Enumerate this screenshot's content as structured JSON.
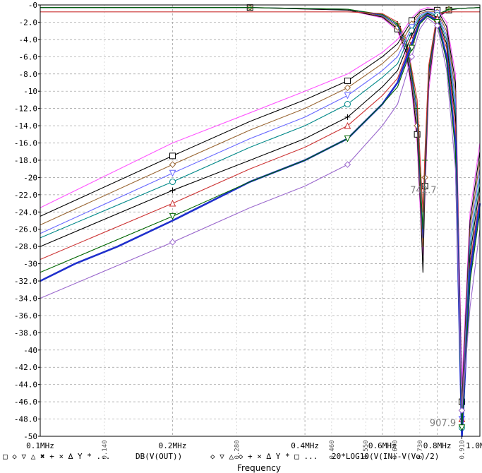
{
  "chart_data": {
    "type": "line",
    "title": "",
    "xlabel": "Frequency",
    "ylabel": "",
    "xscale": "log",
    "xlim": [
      0.1,
      1.0
    ],
    "ylim": [
      -50,
      0
    ],
    "grid": true,
    "x_tick_labels": [
      "0.1MHz",
      "0.2MHz",
      "0.4MHz",
      "0.6MHz",
      "0.8MHz",
      "1.0MHz"
    ],
    "x_tick_values": [
      0.1,
      0.2,
      0.4,
      0.6,
      0.8,
      1.0
    ],
    "x_minor_tick_labels": [
      "0.140",
      "0.280",
      "0.460",
      "0.550",
      "0.640",
      "0.730",
      "0.910"
    ],
    "x_minor_tick_values": [
      0.14,
      0.28,
      0.46,
      0.55,
      0.64,
      0.73,
      0.91
    ],
    "y_tick_labels": [
      "-0",
      "-2.0",
      "-4.0",
      "-6.0",
      "-8.0",
      "-10",
      "-12.0",
      "-14.0",
      "-16.0",
      "-18.0",
      "-20",
      "-22.0",
      "-24.0",
      "-26.0",
      "-28.0",
      "-30",
      "-32.0",
      "-34.0",
      "-36.0",
      "-38.0",
      "-40",
      "-42.0",
      "-44.0",
      "-46.0",
      "-48.0",
      "-50"
    ],
    "y_tick_values": [
      0,
      -2,
      -4,
      -6,
      -8,
      -10,
      -12,
      -14,
      -16,
      -18,
      -20,
      -22,
      -24,
      -26,
      -28,
      -30,
      -32,
      -34,
      -36,
      -38,
      -40,
      -42,
      -44,
      -46,
      -48,
      -50
    ],
    "legend_groups": [
      {
        "markers": "□ ◇ ▽ △ ✖ + × ∆ Y * ...",
        "label": "DB(V(OUT))"
      },
      {
        "markers": "◇ ▽ △ ◇ + × ∆ Y * □ ...",
        "label": "20*LOG10(V(IN)-V(Vo)/2)"
      }
    ],
    "annotations": [
      "742.7",
      "907.9"
    ],
    "out_series": [
      {
        "color": "#ff55ff",
        "marker": "none",
        "x": [
          0.1,
          0.2,
          0.3,
          0.4,
          0.5,
          0.6,
          0.65,
          0.7,
          0.73,
          0.76,
          0.8,
          0.84,
          0.88,
          0.91,
          0.95,
          1.0
        ],
        "y": [
          -23.5,
          -16,
          -12.5,
          -10,
          -8,
          -5.5,
          -4,
          -1.5,
          -0.6,
          -0.3,
          -0.5,
          -2,
          -8,
          -44,
          -24,
          -16
        ]
      },
      {
        "color": "#000000",
        "marker": "square",
        "x": [
          0.1,
          0.2,
          0.3,
          0.4,
          0.5,
          0.6,
          0.65,
          0.7,
          0.73,
          0.76,
          0.8,
          0.84,
          0.88,
          0.91,
          0.95,
          1.0
        ],
        "y": [
          -24.5,
          -17.5,
          -13.5,
          -11,
          -8.8,
          -6,
          -4.5,
          -1.8,
          -0.8,
          -0.5,
          -0.6,
          -2.5,
          -9,
          -46,
          -25,
          -17
        ]
      },
      {
        "color": "#996633",
        "marker": "diamond",
        "x": [
          0.1,
          0.2,
          0.3,
          0.4,
          0.5,
          0.6,
          0.65,
          0.7,
          0.73,
          0.76,
          0.8,
          0.84,
          0.88,
          0.91,
          0.95,
          1.0
        ],
        "y": [
          -25.5,
          -18.5,
          -14.5,
          -12,
          -9.6,
          -6.8,
          -5.2,
          -2.2,
          -1,
          -0.7,
          -0.8,
          -3,
          -10,
          -47,
          -26,
          -18
        ]
      },
      {
        "color": "#6666ff",
        "marker": "tri-down",
        "x": [
          0.1,
          0.2,
          0.3,
          0.4,
          0.5,
          0.6,
          0.65,
          0.7,
          0.73,
          0.76,
          0.8,
          0.84,
          0.88,
          0.91,
          0.95,
          1.0
        ],
        "y": [
          -26.5,
          -19.5,
          -15.5,
          -13,
          -10.5,
          -7.6,
          -6,
          -2.6,
          -1.2,
          -0.8,
          -1,
          -3.5,
          -11,
          -48,
          -27,
          -19
        ]
      },
      {
        "color": "#008888",
        "marker": "circle",
        "x": [
          0.1,
          0.2,
          0.3,
          0.4,
          0.5,
          0.6,
          0.65,
          0.7,
          0.73,
          0.76,
          0.8,
          0.84,
          0.88,
          0.91,
          0.95,
          1.0
        ],
        "y": [
          -27,
          -20.5,
          -16.5,
          -14,
          -11.5,
          -8.4,
          -6.8,
          -3,
          -1.4,
          -0.9,
          -1.2,
          -4,
          -12,
          -49,
          -28,
          -20
        ]
      },
      {
        "color": "#000000",
        "marker": "plus",
        "x": [
          0.1,
          0.2,
          0.3,
          0.4,
          0.5,
          0.6,
          0.65,
          0.7,
          0.73,
          0.76,
          0.8,
          0.84,
          0.88,
          0.91,
          0.95,
          1.0
        ],
        "y": [
          -28,
          -21.5,
          -18,
          -15.5,
          -13,
          -9.5,
          -7.6,
          -3.5,
          -1.6,
          -1,
          -1.4,
          -4.5,
          -13,
          -50,
          -29,
          -21
        ]
      },
      {
        "color": "#cc3333",
        "marker": "triangle",
        "x": [
          0.1,
          0.2,
          0.3,
          0.4,
          0.5,
          0.6,
          0.65,
          0.7,
          0.73,
          0.76,
          0.8,
          0.84,
          0.88,
          0.91,
          0.95,
          1.0
        ],
        "y": [
          -29.5,
          -23,
          -19,
          -16.5,
          -14,
          -10.5,
          -8.5,
          -4,
          -1.8,
          -1.1,
          -1.6,
          -5,
          -14,
          -48,
          -30,
          -22
        ]
      },
      {
        "color": "#1f2fcc",
        "marker": "none",
        "x": [
          0.1,
          0.12,
          0.15,
          0.2,
          0.3,
          0.4,
          0.5,
          0.6,
          0.65,
          0.7,
          0.73,
          0.76,
          0.8,
          0.84,
          0.88,
          0.91,
          0.95,
          1.0
        ],
        "y": [
          -32,
          -30,
          -28,
          -25,
          -20.5,
          -18,
          -15.5,
          -11.5,
          -9,
          -4.5,
          -2,
          -1.2,
          -1.8,
          -6,
          -16,
          -50,
          -31,
          -23
        ]
      },
      {
        "color": "#006600",
        "marker": "tri-down",
        "x": [
          0.1,
          0.2,
          0.3,
          0.4,
          0.5,
          0.6,
          0.65,
          0.7,
          0.73,
          0.76,
          0.8,
          0.84,
          0.88,
          0.91,
          0.95,
          1.0
        ],
        "y": [
          -31,
          -24.5,
          -20.5,
          -18,
          -15.5,
          -11.5,
          -9.5,
          -5,
          -2.2,
          -1.3,
          -2,
          -6.5,
          -17,
          -49,
          -32,
          -24
        ]
      },
      {
        "color": "#9966cc",
        "marker": "diamond",
        "x": [
          0.1,
          0.2,
          0.3,
          0.4,
          0.5,
          0.6,
          0.65,
          0.7,
          0.73,
          0.76,
          0.8,
          0.84,
          0.88,
          0.91,
          0.95,
          1.0
        ],
        "y": [
          -34,
          -27.5,
          -23.5,
          -21,
          -18.5,
          -14,
          -11.5,
          -6,
          -2.8,
          -1.5,
          -2.4,
          -7.5,
          -19,
          -47,
          -35,
          -26
        ]
      }
    ],
    "in_series": [
      {
        "color": "#ff55ff",
        "marker": "none",
        "x": [
          0.1,
          0.3,
          0.5,
          0.6,
          0.65,
          0.68,
          0.7,
          0.72,
          0.735,
          0.742,
          0.75,
          0.765,
          0.8,
          0.85,
          0.9,
          1.0
        ],
        "y": [
          -0.3,
          -0.3,
          -0.6,
          -1.5,
          -3,
          -6,
          -10,
          -16,
          -26,
          -29,
          -22,
          -10,
          -1.5,
          -0.6,
          -0.4,
          -0.3
        ]
      },
      {
        "color": "#000000",
        "marker": "square",
        "x": [
          0.1,
          0.3,
          0.5,
          0.6,
          0.65,
          0.68,
          0.7,
          0.72,
          0.735,
          0.742,
          0.75,
          0.765,
          0.8,
          0.85,
          0.9,
          1.0
        ],
        "y": [
          -0.3,
          -0.3,
          -0.6,
          -1.4,
          -2.8,
          -5.5,
          -9.5,
          -15,
          -25,
          -31,
          -21,
          -9,
          -1.4,
          -0.6,
          -0.4,
          -0.3
        ]
      },
      {
        "color": "#996633",
        "marker": "diamond",
        "x": [
          0.1,
          0.3,
          0.5,
          0.6,
          0.65,
          0.68,
          0.7,
          0.72,
          0.735,
          0.742,
          0.75,
          0.765,
          0.8,
          0.85,
          0.9,
          1.0
        ],
        "y": [
          -0.3,
          -0.3,
          -0.5,
          -1.3,
          -2.6,
          -5,
          -9,
          -14,
          -24,
          -28,
          -20,
          -8.5,
          -1.3,
          -0.5,
          -0.4,
          -0.3
        ]
      },
      {
        "color": "#1f2fcc",
        "marker": "none",
        "x": [
          0.1,
          0.3,
          0.5,
          0.6,
          0.65,
          0.68,
          0.7,
          0.72,
          0.735,
          0.742,
          0.75,
          0.765,
          0.8,
          0.85,
          0.9,
          1.0
        ],
        "y": [
          -0.3,
          -0.3,
          -0.5,
          -1.2,
          -2.4,
          -4.8,
          -8.5,
          -13,
          -23,
          -27,
          -19,
          -8,
          -1.2,
          -0.5,
          -0.4,
          -0.3
        ]
      },
      {
        "color": "#006600",
        "marker": "plus",
        "x": [
          0.1,
          0.3,
          0.5,
          0.6,
          0.65,
          0.68,
          0.7,
          0.72,
          0.735,
          0.742,
          0.75,
          0.765,
          0.8,
          0.85,
          0.9,
          1.0
        ],
        "y": [
          -0.3,
          -0.3,
          -0.5,
          -1.1,
          -2.2,
          -4.4,
          -8,
          -12,
          -22,
          -26,
          -18,
          -7.5,
          -1.1,
          -0.5,
          -0.4,
          -0.3
        ]
      },
      {
        "color": "#cc3333",
        "marker": "none",
        "x": [
          0.1,
          0.3,
          0.5,
          0.6,
          0.65,
          0.68,
          0.7,
          0.72,
          0.735,
          0.742,
          0.75,
          0.765,
          0.8,
          0.85,
          0.9,
          1.0
        ],
        "y": [
          -0.8,
          -0.8,
          -0.8,
          -1,
          -2,
          -4,
          -7.5,
          -11,
          -20,
          -24,
          -17,
          -7,
          -1,
          -0.8,
          -0.8,
          -0.8
        ]
      }
    ]
  }
}
